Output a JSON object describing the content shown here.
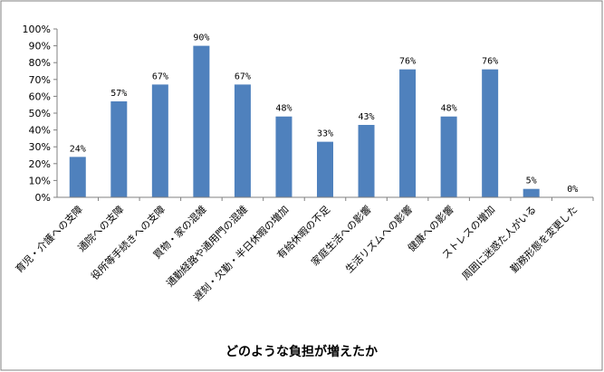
{
  "chart_data": {
    "type": "bar",
    "categories": [
      "育児・介護への支障",
      "通院への支障",
      "役所等手続きへの支障",
      "買物・家の混雑",
      "通勤経路や通用門の混雑",
      "遅刻・欠勤・半日休暇の増加",
      "有給休暇の不足",
      "家庭生活への影響",
      "生活リズムへの影響",
      "健康への影響",
      "ストレスの増加",
      "周囲に迷惑た人がいる",
      "勤務形態を変更した"
    ],
    "values": [
      24,
      57,
      67,
      90,
      67,
      48,
      33,
      43,
      76,
      48,
      76,
      5,
      0
    ],
    "value_labels": [
      "24%",
      "57%",
      "67%",
      "90%",
      "67%",
      "48%",
      "33%",
      "43%",
      "76%",
      "48%",
      "76%",
      "5%",
      "0%"
    ],
    "xlabel": "どのような負担が増えたか",
    "ylabel": "",
    "ylim": [
      0,
      100
    ],
    "yticks": [
      0,
      10,
      20,
      30,
      40,
      50,
      60,
      70,
      80,
      90,
      100
    ],
    "ytick_labels": [
      "0%",
      "10%",
      "20%",
      "30%",
      "40%",
      "50%",
      "60%",
      "70%",
      "80%",
      "90%",
      "100%"
    ],
    "grid": false,
    "bar_color": "#4F81BD",
    "border_color": "#808080"
  }
}
